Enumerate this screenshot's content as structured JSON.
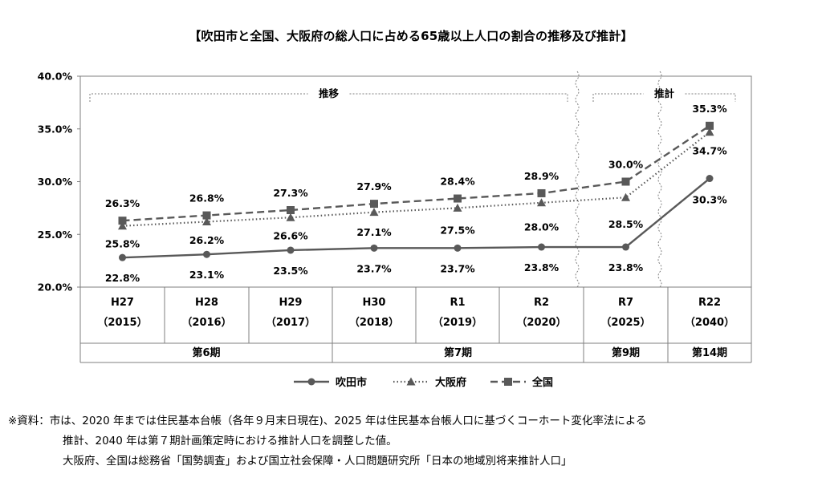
{
  "title": "【吹田市と全国、大阪府の総人口に占める65歳以上人口の割合の推移及び推計】",
  "chart_data": {
    "type": "line",
    "ylim": [
      20,
      40
    ],
    "yticks": [
      "20.0%",
      "25.0%",
      "30.0%",
      "35.0%",
      "40.0%"
    ],
    "ytick_values": [
      20,
      25,
      30,
      35,
      40
    ],
    "grid": false,
    "legend_position": "bottom",
    "categories": [
      {
        "era": "H27",
        "year": "（2015）"
      },
      {
        "era": "H28",
        "year": "（2016）"
      },
      {
        "era": "H29",
        "year": "（2017）"
      },
      {
        "era": "H30",
        "year": "（2018）"
      },
      {
        "era": "R1",
        "year": "（2019）"
      },
      {
        "era": "R2",
        "year": "（2020）"
      },
      {
        "era": "R7",
        "year": "（2025）"
      },
      {
        "era": "R22",
        "year": "（2040）"
      }
    ],
    "periods": [
      {
        "label": "第6期",
        "span": [
          0,
          2
        ]
      },
      {
        "label": "第7期",
        "span": [
          3,
          5
        ]
      },
      {
        "label": "第9期",
        "span": [
          6,
          6
        ]
      },
      {
        "label": "第14期",
        "span": [
          7,
          7
        ]
      }
    ],
    "brackets": [
      {
        "label": "推移",
        "span": [
          0,
          5
        ]
      },
      {
        "label": "推計",
        "span": [
          6,
          7
        ]
      }
    ],
    "series": [
      {
        "name": "吹田市",
        "style": "solid",
        "marker": "circle",
        "values": [
          22.8,
          23.1,
          23.5,
          23.7,
          23.7,
          23.8,
          23.8,
          30.3
        ],
        "labels": [
          "22.8%",
          "23.1%",
          "23.5%",
          "23.7%",
          "23.7%",
          "23.8%",
          "23.8%",
          "30.3%"
        ]
      },
      {
        "name": "大阪府",
        "style": "dotted",
        "marker": "triangle",
        "values": [
          25.8,
          26.2,
          26.6,
          27.1,
          27.5,
          28.0,
          28.5,
          34.7
        ],
        "labels": [
          "25.8%",
          "26.2%",
          "26.6%",
          "27.1%",
          "27.5%",
          "28.0%",
          "28.5%",
          "34.7%"
        ]
      },
      {
        "name": "全国",
        "style": "dashed",
        "marker": "square",
        "values": [
          26.3,
          26.8,
          27.3,
          27.9,
          28.4,
          28.9,
          30.0,
          35.3
        ],
        "labels": [
          "26.3%",
          "26.8%",
          "27.3%",
          "27.9%",
          "28.4%",
          "28.9%",
          "30.0%",
          "35.3%"
        ]
      }
    ],
    "colors": {
      "line": "#595959",
      "axis": "#7f7f7f",
      "bracket": "#7f7f7f"
    }
  },
  "footnote": {
    "line1": "※資料：市は、2020 年までは住民基本台帳（各年９月末日現在)、2025 年は住民基本台帳人口に基づくコーホート変化率法による",
    "line2": "推計、2040 年は第７期計画策定時における推計人口を調整した値。",
    "line3": "大阪府、全国は総務省「国勢調査」および国立社会保障・人口問題研究所「日本の地域別将来推計人口」"
  }
}
